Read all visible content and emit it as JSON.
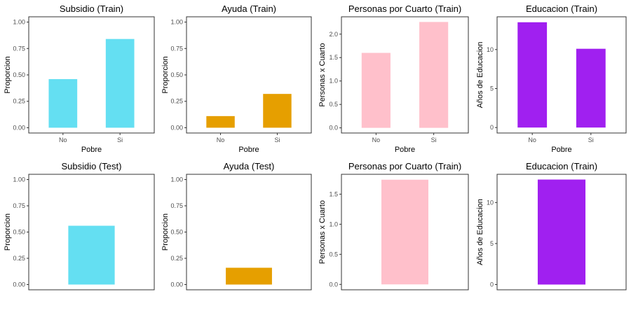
{
  "chart_data": [
    {
      "type": "bar",
      "title": "Subsidio (Train)",
      "xlabel": "Pobre",
      "ylabel": "Proporcion",
      "categories": [
        "No",
        "Si"
      ],
      "values": [
        0.46,
        0.84
      ],
      "ylim": [
        -0.05,
        1.05
      ],
      "yticks": [
        0.0,
        0.25,
        0.5,
        0.75,
        1.0
      ],
      "ytick_labels": [
        "0.00",
        "0.25",
        "0.50",
        "0.75",
        "1.00"
      ],
      "color": "#64dff2",
      "grid": false
    },
    {
      "type": "bar",
      "title": "Ayuda (Train)",
      "xlabel": "Pobre",
      "ylabel": "Proporcion",
      "categories": [
        "No",
        "Si"
      ],
      "values": [
        0.11,
        0.32
      ],
      "ylim": [
        -0.05,
        1.05
      ],
      "yticks": [
        0.0,
        0.25,
        0.5,
        0.75,
        1.0
      ],
      "ytick_labels": [
        "0.00",
        "0.25",
        "0.50",
        "0.75",
        "1.00"
      ],
      "color": "#e69f00",
      "grid": false
    },
    {
      "type": "bar",
      "title": "Personas por Cuarto (Train)",
      "xlabel": "Pobre",
      "ylabel": "Personas x Cuarto",
      "categories": [
        "No",
        "Si"
      ],
      "values": [
        1.6,
        2.26
      ],
      "ylim": [
        -0.11,
        2.37
      ],
      "yticks": [
        0.0,
        0.5,
        1.0,
        1.5,
        2.0
      ],
      "ytick_labels": [
        "0.0",
        "0.5",
        "1.0",
        "1.5",
        "2.0"
      ],
      "color": "#ffc0cb",
      "grid": false
    },
    {
      "type": "bar",
      "title": "Educacion (Train)",
      "xlabel": "Pobre",
      "ylabel": "Años de Educacion",
      "categories": [
        "No",
        "Si"
      ],
      "values": [
        13.5,
        10.1
      ],
      "ylim": [
        -0.7,
        14.2
      ],
      "yticks": [
        0,
        5,
        10
      ],
      "ytick_labels": [
        "0",
        "5",
        "10"
      ],
      "color": "#a020f0",
      "grid": false
    },
    {
      "type": "bar",
      "title": "Subsidio (Test)",
      "xlabel": "",
      "ylabel": "Proporcion",
      "categories": [
        ""
      ],
      "values": [
        0.56
      ],
      "ylim": [
        -0.05,
        1.05
      ],
      "yticks": [
        0.0,
        0.25,
        0.5,
        0.75,
        1.0
      ],
      "ytick_labels": [
        "0.00",
        "0.25",
        "0.50",
        "0.75",
        "1.00"
      ],
      "color": "#64dff2",
      "grid": false
    },
    {
      "type": "bar",
      "title": "Ayuda (Test)",
      "xlabel": "",
      "ylabel": "Proporcion",
      "categories": [
        ""
      ],
      "values": [
        0.16
      ],
      "ylim": [
        -0.05,
        1.05
      ],
      "yticks": [
        0.0,
        0.25,
        0.5,
        0.75,
        1.0
      ],
      "ytick_labels": [
        "0.00",
        "0.25",
        "0.50",
        "0.75",
        "1.00"
      ],
      "color": "#e69f00",
      "grid": false
    },
    {
      "type": "bar",
      "title": "Personas por Cuarto (Train)",
      "xlabel": "",
      "ylabel": "Personas x Cuarto",
      "categories": [
        ""
      ],
      "values": [
        1.74
      ],
      "ylim": [
        -0.09,
        1.83
      ],
      "yticks": [
        0.0,
        0.5,
        1.0,
        1.5
      ],
      "ytick_labels": [
        "0.0",
        "0.5",
        "1.0",
        "1.5"
      ],
      "color": "#ffc0cb",
      "grid": false
    },
    {
      "type": "bar",
      "title": "Educacion (Train)",
      "xlabel": "",
      "ylabel": "Años de Educacion",
      "categories": [
        ""
      ],
      "values": [
        12.8
      ],
      "ylim": [
        -0.64,
        13.44
      ],
      "yticks": [
        0,
        5,
        10
      ],
      "ytick_labels": [
        "0",
        "5",
        "10"
      ],
      "color": "#a020f0",
      "grid": false
    }
  ]
}
